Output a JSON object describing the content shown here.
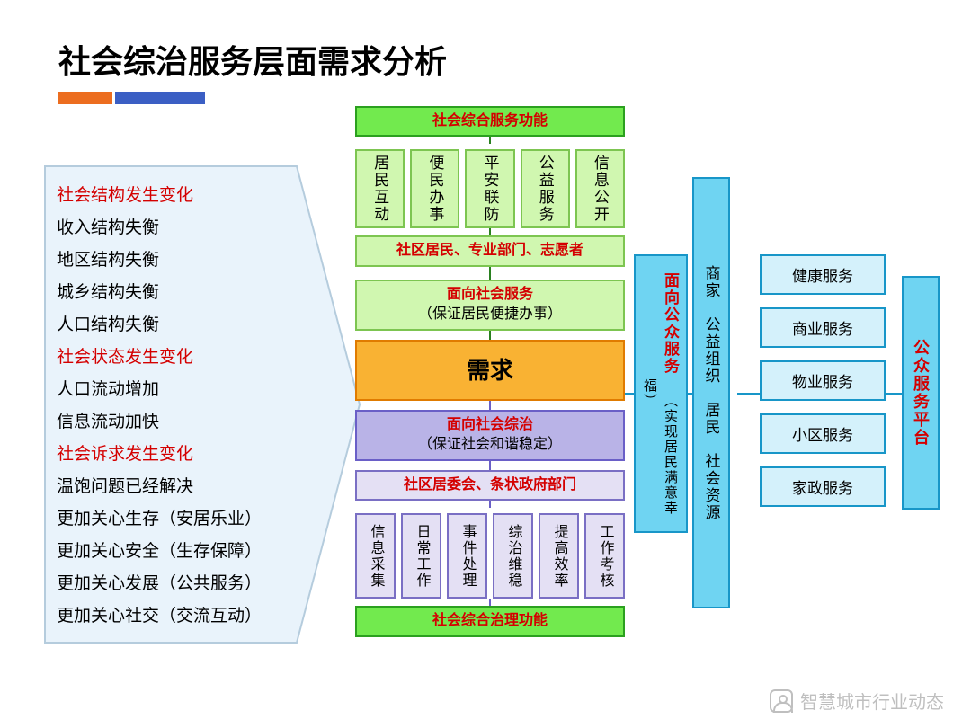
{
  "slide": {
    "title": "社会综治服务层面需求分析",
    "bars": {
      "orange_color": "#ec6d1f",
      "blue_color": "#3b5fc4"
    }
  },
  "left_list": [
    {
      "text": "社会结构发生变化",
      "red": true
    },
    {
      "text": "收入结构失衡",
      "red": false
    },
    {
      "text": "地区结构失衡",
      "red": false
    },
    {
      "text": "城乡结构失衡",
      "red": false
    },
    {
      "text": "人口结构失衡",
      "red": false
    },
    {
      "text": "社会状态发生变化",
      "red": true
    },
    {
      "text": "人口流动增加",
      "red": false
    },
    {
      "text": "信息流动加快",
      "red": false
    },
    {
      "text": "社会诉求发生变化",
      "red": true
    },
    {
      "text": "温饱问题已经解决",
      "red": false
    },
    {
      "text": "更加关心生存（安居乐业）",
      "red": false
    },
    {
      "text": "更加关心安全（生存保障）",
      "red": false
    },
    {
      "text": "更加关心发展（公共服务）",
      "red": false
    },
    {
      "text": "更加关心社交（交流互动）",
      "red": false
    }
  ],
  "center": {
    "top_title": "社会综合服务功能",
    "top_cells": [
      "居民互动",
      "便民办事",
      "平安联防",
      "公益服务",
      "信息公开"
    ],
    "top_actors": "社区居民、专业部门、志愿者",
    "mid_top_title": "面向社会服务",
    "mid_top_sub": "（保证居民便捷办事）",
    "core": "需求",
    "mid_bot_title": "面向社会综治",
    "mid_bot_sub": "（保证社会和谐稳定）",
    "bot_actors": "社区居委会、条状政府部门",
    "bot_cells": [
      "信息采集",
      "日常工作",
      "事件处理",
      "综治维稳",
      "提高效率",
      "工作考核"
    ],
    "bot_title": "社会综合治理功能"
  },
  "right": {
    "col1_title": "面向公众服务",
    "col1_sub": "（实现居民满意幸福）",
    "col2": "商家　公益组织　居民　社会资源",
    "services": [
      "健康服务",
      "商业服务",
      "物业服务",
      "小区服务",
      "家政服务"
    ],
    "platform": "公众服务平台"
  },
  "colors": {
    "green_fill": "#72ea4e",
    "green_border": "#2ba01f",
    "lime_fill": "#d0f7b0",
    "lime_border": "#7dc551",
    "orange_fill": "#f9b233",
    "orange_border": "#e07b00",
    "purple_fill": "#b9b3e7",
    "purple_border": "#6a5fc7",
    "lav_fill": "#e4e0f4",
    "lav_border": "#7a6fc4",
    "cyan_fill": "#6fd4f2",
    "cyan_border": "#1896c8",
    "cyan_light": "#d4f1fb",
    "red_text": "#d40000",
    "arrow_fill": "#e9f3fb",
    "arrow_border": "#b5ccdd"
  },
  "watermark": "智慧城市行业动态"
}
